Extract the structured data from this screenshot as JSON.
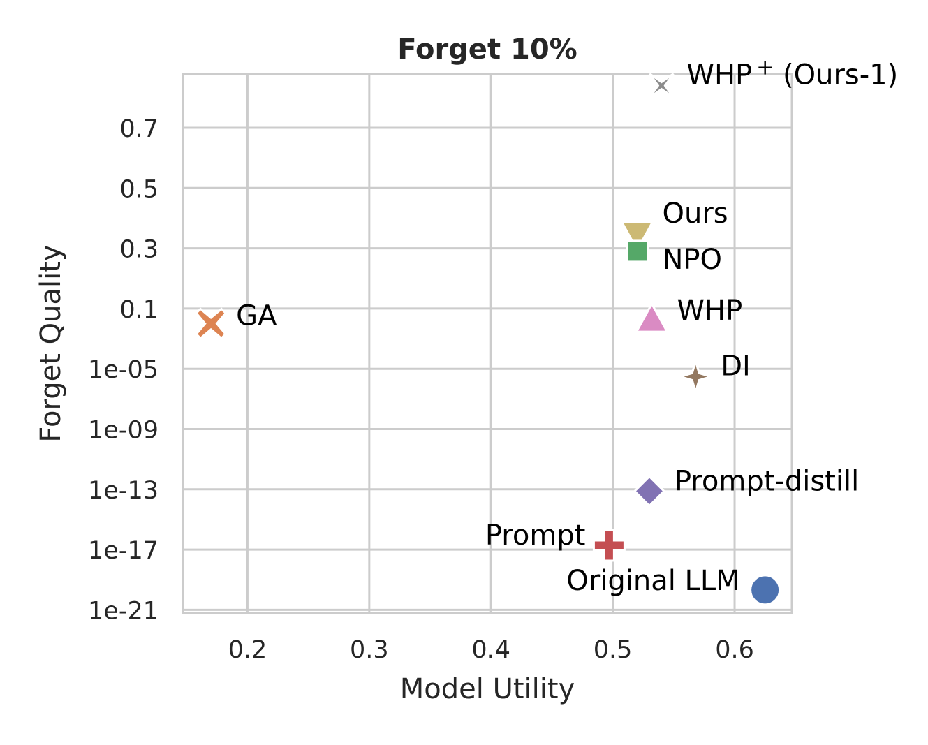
{
  "chart_data": {
    "type": "scatter",
    "title": "Forget 10%",
    "xlabel": "Model Utility",
    "ylabel": "Forget Quality",
    "xlim": [
      0.147,
      0.647
    ],
    "x_ticks": [
      0.2,
      0.3,
      0.4,
      0.5,
      0.6
    ],
    "x_tick_labels": [
      "0.2",
      "0.3",
      "0.4",
      "0.5",
      "0.6"
    ],
    "y_tick_labels": [
      "0.7",
      "0.5",
      "0.3",
      "0.1",
      "1e-05",
      "1e-09",
      "1e-13",
      "1e-17",
      "1e-21"
    ],
    "grid": true,
    "legend": "none (points labeled directly)",
    "points": [
      {
        "label": "WHP",
        "label_sup": "+",
        "label_suffix": " (Ours-1)",
        "x": 0.54,
        "y_pos": -0.7,
        "marker": "star4",
        "color": "#8c8c8c"
      },
      {
        "label": "Ours",
        "x": 0.52,
        "y_pos": 1.75,
        "marker": "triangle-down",
        "color": "#ccb974"
      },
      {
        "label": "NPO",
        "x": 0.52,
        "y_pos": 2.05,
        "marker": "square",
        "color": "#55a868"
      },
      {
        "label": "GA",
        "x": 0.17,
        "y_pos": 3.25,
        "marker": "x",
        "color": "#dd8452"
      },
      {
        "label": "WHP",
        "x": 0.532,
        "y_pos": 3.2,
        "marker": "triangle-up",
        "color": "#da8bc3"
      },
      {
        "label": "DI",
        "x": 0.568,
        "y_pos": 4.13,
        "marker": "diamond-thin",
        "color": "#937860"
      },
      {
        "label": "Prompt-distill",
        "x": 0.53,
        "y_pos": 6.03,
        "marker": "diamond",
        "color": "#8172b3"
      },
      {
        "label": "Prompt",
        "x": 0.497,
        "y_pos": 6.93,
        "marker": "plus",
        "color": "#c44e52"
      },
      {
        "label": "Original LLM",
        "x": 0.625,
        "y_pos": 7.67,
        "marker": "circle",
        "color": "#4c72b0"
      }
    ]
  }
}
